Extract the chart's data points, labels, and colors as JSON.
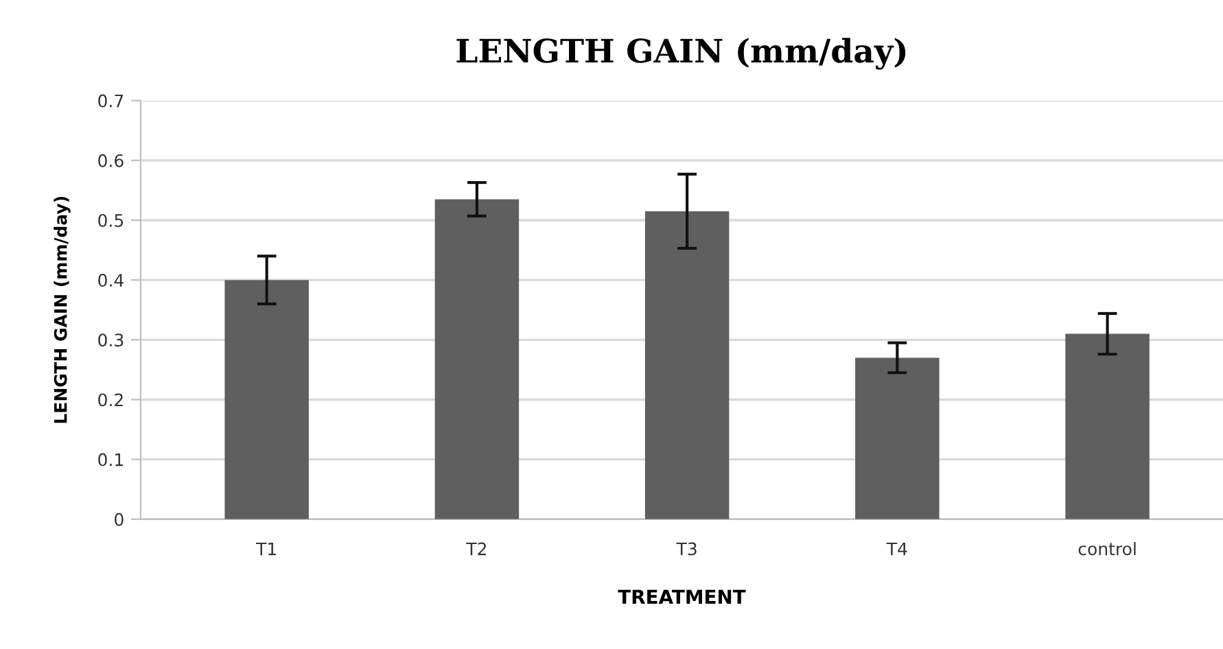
{
  "chart_data": {
    "type": "bar",
    "title": "LENGTH GAIN (mm/day)",
    "xlabel": "TREATMENT",
    "ylabel": "LENGTH GAIN (mm/day)",
    "categories": [
      "T1",
      "T2",
      "T3",
      "T4",
      "control"
    ],
    "values": [
      0.4,
      0.535,
      0.515,
      0.27,
      0.31
    ],
    "errors": [
      0.04,
      0.028,
      0.062,
      0.025,
      0.034
    ],
    "color": "#5f5f5f",
    "ylim": [
      0,
      0.7
    ],
    "yticks": [
      {
        "value": 0,
        "label": "0"
      },
      0.1,
      0.2,
      0.3,
      0.4,
      0.5,
      0.6,
      0.7
    ],
    "grid": "y"
  }
}
